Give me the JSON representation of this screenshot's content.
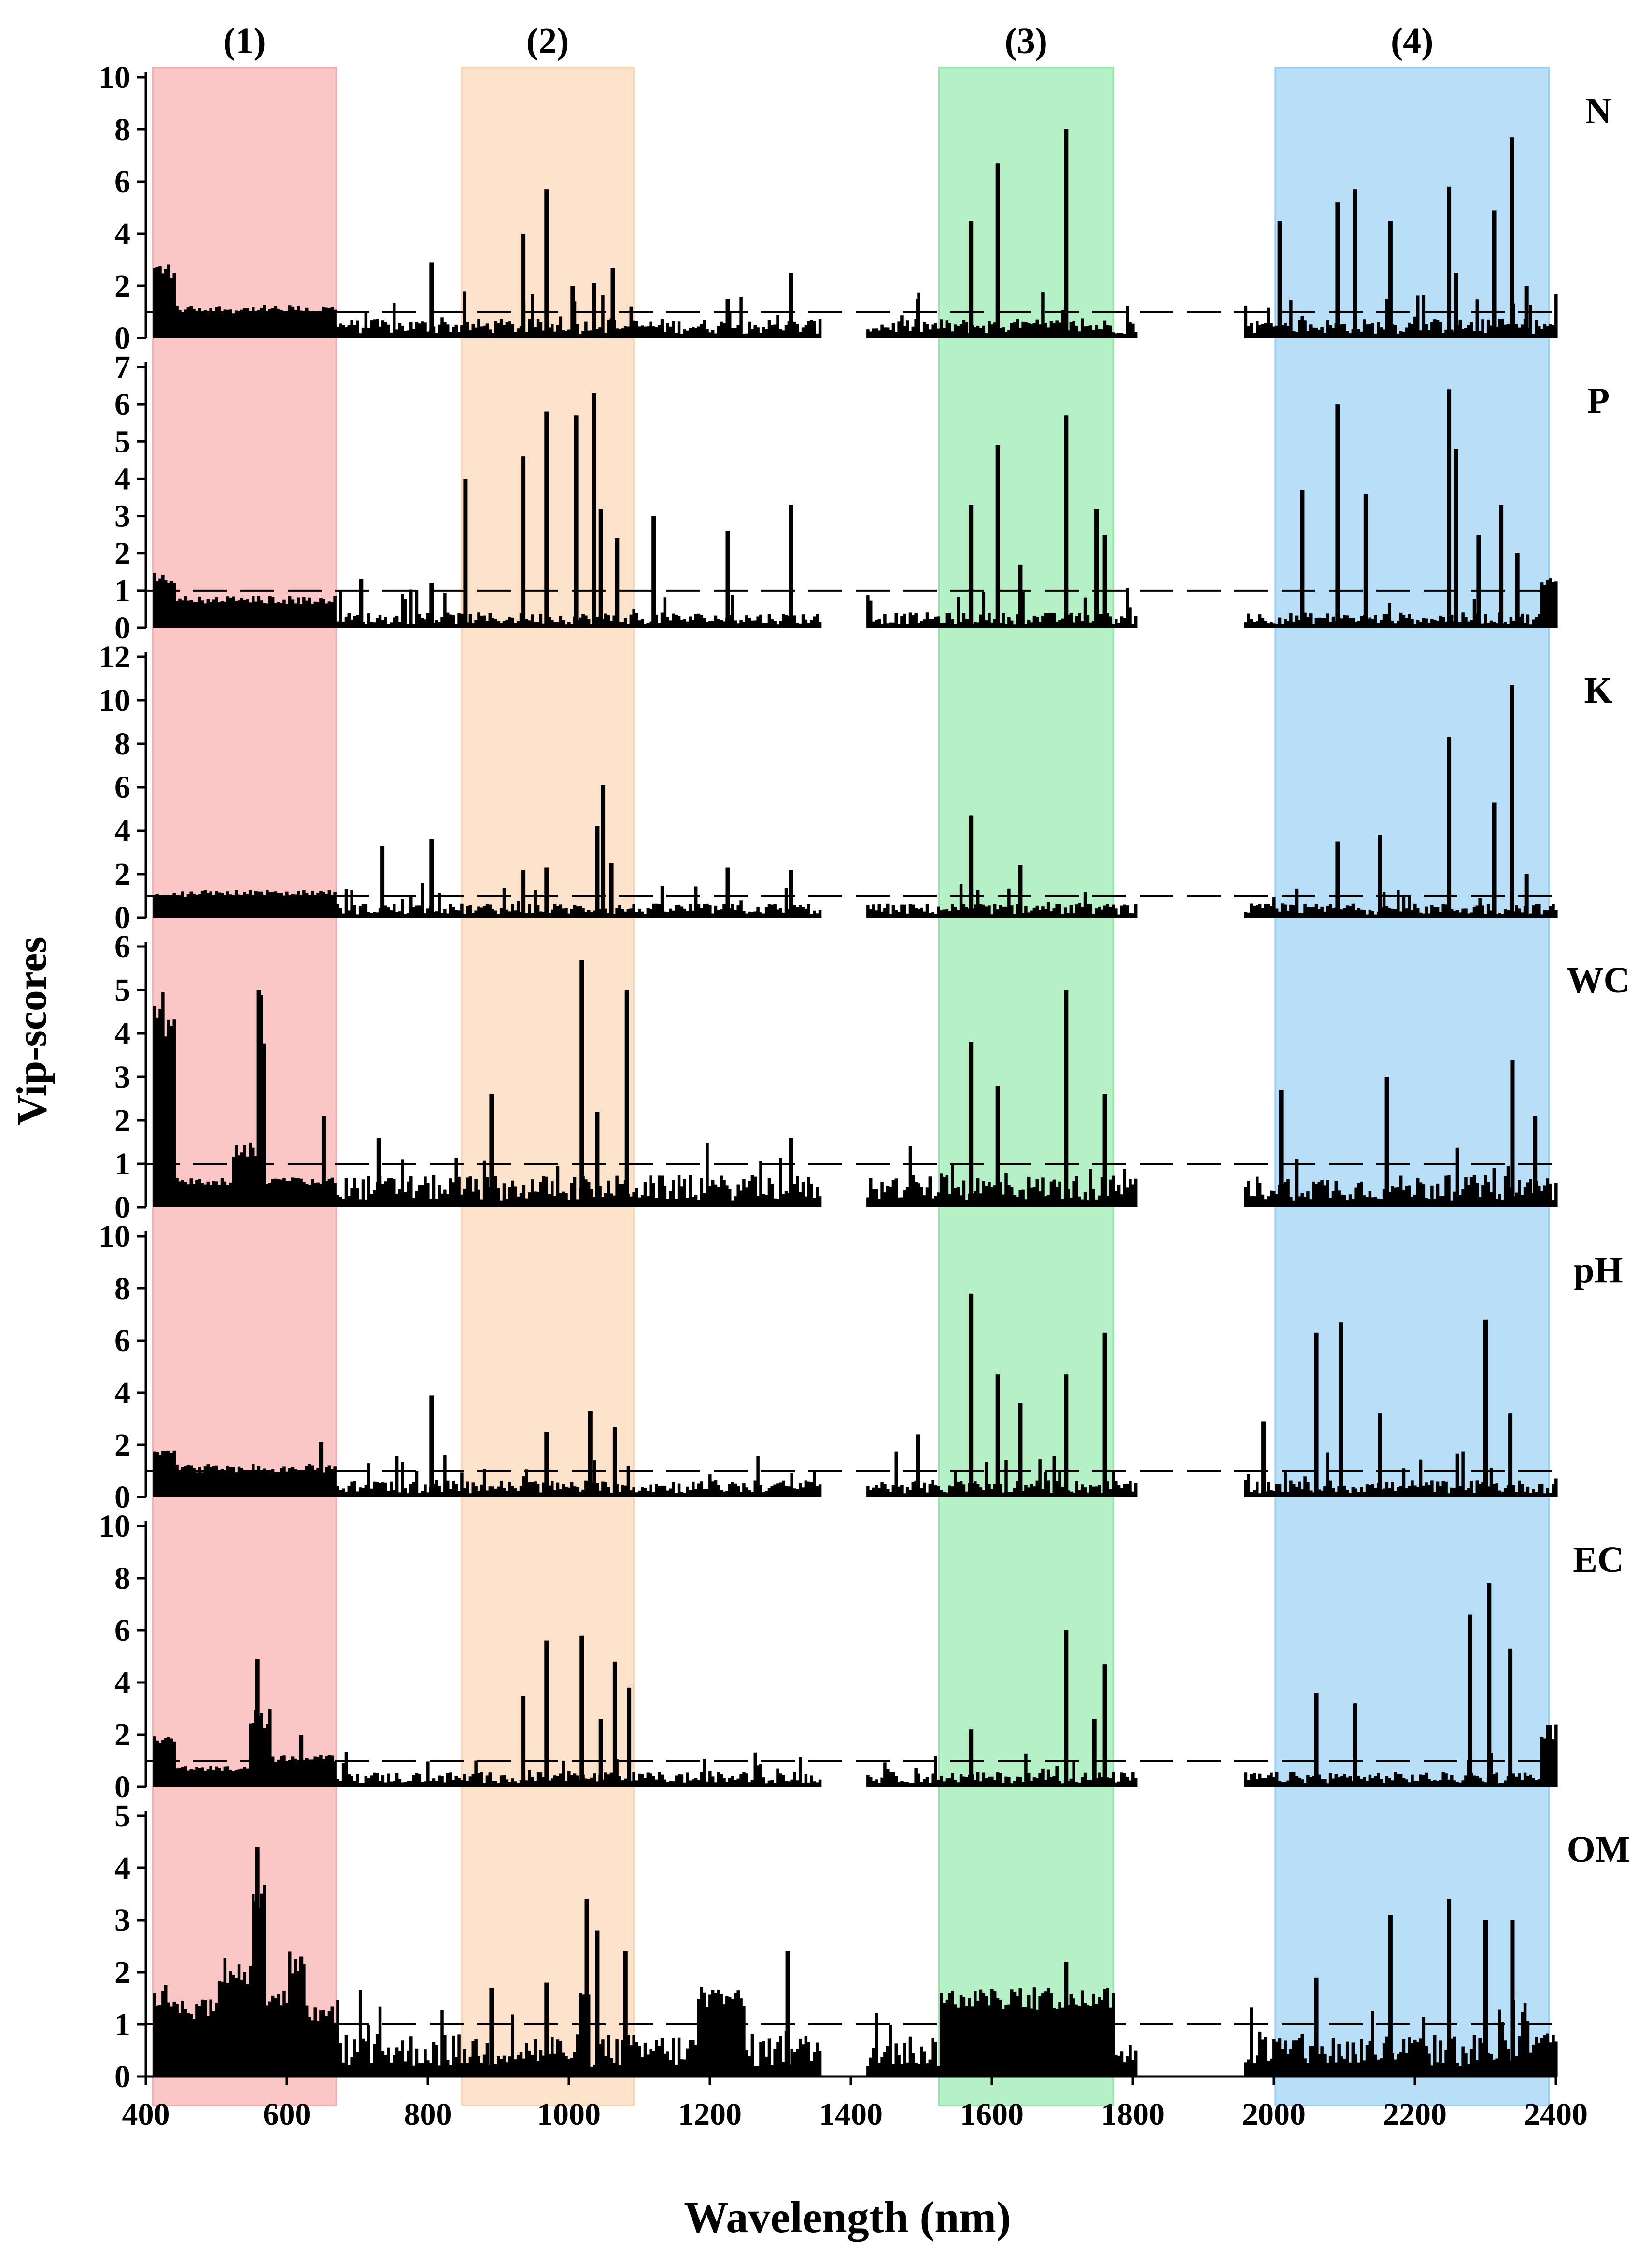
{
  "chart_data": {
    "type": "bar",
    "title": "",
    "xlabel": "Wavelength (nm)",
    "ylabel": "Vip-scores",
    "xlim": [
      400,
      2400
    ],
    "x_ticks": [
      400,
      600,
      800,
      1000,
      1200,
      1400,
      1600,
      1800,
      2000,
      2200,
      2400
    ],
    "threshold": 1,
    "bands": [
      {
        "label": "(1)",
        "range": [
          410,
          670
        ],
        "color": "#f8a8a8"
      },
      {
        "label": "(2)",
        "range": [
          848,
          1092
        ],
        "color": "#fbd3ad"
      },
      {
        "label": "(3)",
        "range": [
          1525,
          1772
        ],
        "color": "#8ee8a8"
      },
      {
        "label": "(4)",
        "range": [
          2002,
          2390
        ],
        "color": "#93ccf5"
      }
    ],
    "gaps": [
      [
        1355,
        1420
      ],
      [
        1805,
        1955
      ]
    ],
    "panels": [
      {
        "name": "N",
        "ylim": [
          0,
          10
        ],
        "y_ticks": [
          0,
          2,
          4,
          6,
          8,
          10
        ],
        "baseline": 0.45,
        "noise": 0.9,
        "regions": [
          {
            "range": [
              410,
              440
            ],
            "value": 2.6
          },
          {
            "range": [
              440,
              670
            ],
            "value": 1.1
          }
        ],
        "peaks": [
          {
            "x": 805,
            "y": 2.9
          },
          {
            "x": 935,
            "y": 4.0
          },
          {
            "x": 968,
            "y": 5.7
          },
          {
            "x": 1005,
            "y": 2.0
          },
          {
            "x": 1035,
            "y": 2.1
          },
          {
            "x": 1062,
            "y": 2.7
          },
          {
            "x": 1225,
            "y": 1.5
          },
          {
            "x": 1315,
            "y": 2.5
          },
          {
            "x": 1495,
            "y": 1.5
          },
          {
            "x": 1570,
            "y": 4.5
          },
          {
            "x": 1608,
            "y": 6.7
          },
          {
            "x": 1705,
            "y": 8.0
          },
          {
            "x": 2008,
            "y": 4.5
          },
          {
            "x": 2090,
            "y": 5.2
          },
          {
            "x": 2115,
            "y": 5.7
          },
          {
            "x": 2165,
            "y": 4.5
          },
          {
            "x": 2248,
            "y": 5.8
          },
          {
            "x": 2258,
            "y": 2.5
          },
          {
            "x": 2312,
            "y": 4.9
          },
          {
            "x": 2337,
            "y": 7.7
          },
          {
            "x": 2358,
            "y": 2.0
          }
        ]
      },
      {
        "name": "P",
        "ylim": [
          0,
          7
        ],
        "y_ticks": [
          0,
          1,
          2,
          3,
          4,
          5,
          6,
          7
        ],
        "baseline": 0.25,
        "noise": 0.55,
        "regions": [
          {
            "range": [
              410,
              440
            ],
            "value": 1.3
          },
          {
            "range": [
              440,
              670
            ],
            "value": 0.75
          },
          {
            "range": [
              2375,
              2400
            ],
            "value": 1.2
          }
        ],
        "peaks": [
          {
            "x": 705,
            "y": 1.3
          },
          {
            "x": 805,
            "y": 1.2
          },
          {
            "x": 853,
            "y": 4.0
          },
          {
            "x": 935,
            "y": 4.6
          },
          {
            "x": 968,
            "y": 5.8
          },
          {
            "x": 1010,
            "y": 5.7
          },
          {
            "x": 1035,
            "y": 6.3
          },
          {
            "x": 1045,
            "y": 3.2
          },
          {
            "x": 1068,
            "y": 2.4
          },
          {
            "x": 1120,
            "y": 3.0
          },
          {
            "x": 1225,
            "y": 2.6
          },
          {
            "x": 1315,
            "y": 3.3
          },
          {
            "x": 1570,
            "y": 3.3
          },
          {
            "x": 1608,
            "y": 4.9
          },
          {
            "x": 1640,
            "y": 1.7
          },
          {
            "x": 1705,
            "y": 5.7
          },
          {
            "x": 1748,
            "y": 3.2
          },
          {
            "x": 1760,
            "y": 2.5
          },
          {
            "x": 2040,
            "y": 3.7
          },
          {
            "x": 2090,
            "y": 6.0
          },
          {
            "x": 2130,
            "y": 3.6
          },
          {
            "x": 2248,
            "y": 6.4
          },
          {
            "x": 2258,
            "y": 4.8
          },
          {
            "x": 2290,
            "y": 2.5
          },
          {
            "x": 2322,
            "y": 3.3
          },
          {
            "x": 2345,
            "y": 2.0
          }
        ]
      },
      {
        "name": "K",
        "ylim": [
          0,
          12
        ],
        "y_ticks": [
          0,
          2,
          4,
          6,
          8,
          10,
          12
        ],
        "baseline": 0.4,
        "noise": 0.8,
        "regions": [
          {
            "range": [
              410,
              670
            ],
            "value": 1.1
          }
        ],
        "peaks": [
          {
            "x": 735,
            "y": 3.3
          },
          {
            "x": 805,
            "y": 3.6
          },
          {
            "x": 935,
            "y": 2.2
          },
          {
            "x": 968,
            "y": 2.3
          },
          {
            "x": 1040,
            "y": 4.2
          },
          {
            "x": 1048,
            "y": 6.1
          },
          {
            "x": 1060,
            "y": 2.5
          },
          {
            "x": 1225,
            "y": 2.3
          },
          {
            "x": 1315,
            "y": 2.2
          },
          {
            "x": 1570,
            "y": 4.7
          },
          {
            "x": 1640,
            "y": 2.4
          },
          {
            "x": 2090,
            "y": 3.5
          },
          {
            "x": 2150,
            "y": 3.8
          },
          {
            "x": 2248,
            "y": 8.3
          },
          {
            "x": 2312,
            "y": 5.3
          },
          {
            "x": 2337,
            "y": 10.7
          },
          {
            "x": 2358,
            "y": 2.0
          }
        ]
      },
      {
        "name": "WC",
        "ylim": [
          0,
          6
        ],
        "y_ticks": [
          0,
          1,
          2,
          3,
          4,
          5,
          6
        ],
        "baseline": 0.45,
        "noise": 0.7,
        "regions": [
          {
            "range": [
              410,
              440
            ],
            "value": 4.6
          },
          {
            "range": [
              440,
              520
            ],
            "value": 0.6
          },
          {
            "range": [
              520,
              555
            ],
            "value": 1.3
          },
          {
            "range": [
              555,
              570
            ],
            "value": 4.3
          },
          {
            "range": [
              570,
              670
            ],
            "value": 0.6
          }
        ],
        "peaks": [
          {
            "x": 560,
            "y": 5.0
          },
          {
            "x": 652,
            "y": 2.1
          },
          {
            "x": 730,
            "y": 1.6
          },
          {
            "x": 890,
            "y": 2.6
          },
          {
            "x": 1018,
            "y": 5.7
          },
          {
            "x": 1082,
            "y": 5.0
          },
          {
            "x": 1040,
            "y": 2.2
          },
          {
            "x": 1315,
            "y": 1.6
          },
          {
            "x": 1570,
            "y": 3.8
          },
          {
            "x": 1608,
            "y": 2.8
          },
          {
            "x": 1705,
            "y": 5.0
          },
          {
            "x": 1760,
            "y": 2.6
          },
          {
            "x": 2010,
            "y": 2.7
          },
          {
            "x": 2160,
            "y": 3.0
          },
          {
            "x": 2338,
            "y": 3.4
          },
          {
            "x": 2370,
            "y": 2.1
          }
        ]
      },
      {
        "name": "pH",
        "ylim": [
          0,
          10
        ],
        "y_ticks": [
          0,
          2,
          4,
          6,
          8,
          10
        ],
        "baseline": 0.4,
        "noise": 0.9,
        "regions": [
          {
            "range": [
              410,
              440
            ],
            "value": 1.7
          },
          {
            "range": [
              440,
              670
            ],
            "value": 1.1
          }
        ],
        "peaks": [
          {
            "x": 648,
            "y": 2.1
          },
          {
            "x": 805,
            "y": 3.9
          },
          {
            "x": 968,
            "y": 2.5
          },
          {
            "x": 1030,
            "y": 3.3
          },
          {
            "x": 1065,
            "y": 2.7
          },
          {
            "x": 1495,
            "y": 2.4
          },
          {
            "x": 1570,
            "y": 7.8
          },
          {
            "x": 1608,
            "y": 4.7
          },
          {
            "x": 1640,
            "y": 3.6
          },
          {
            "x": 1705,
            "y": 4.7
          },
          {
            "x": 1760,
            "y": 6.3
          },
          {
            "x": 1985,
            "y": 2.9
          },
          {
            "x": 2060,
            "y": 6.3
          },
          {
            "x": 2095,
            "y": 6.7
          },
          {
            "x": 2150,
            "y": 3.2
          },
          {
            "x": 2300,
            "y": 6.8
          },
          {
            "x": 2335,
            "y": 3.2
          }
        ]
      },
      {
        "name": "EC",
        "ylim": [
          0,
          10
        ],
        "y_ticks": [
          0,
          2,
          4,
          6,
          8,
          10
        ],
        "baseline": 0.35,
        "noise": 0.7,
        "regions": [
          {
            "range": [
              410,
              440
            ],
            "value": 1.9
          },
          {
            "range": [
              440,
              545
            ],
            "value": 0.7
          },
          {
            "range": [
              545,
              575
            ],
            "value": 2.6
          },
          {
            "range": [
              575,
              670
            ],
            "value": 1.1
          },
          {
            "range": [
              2375,
              2400
            ],
            "value": 2.1
          }
        ],
        "peaks": [
          {
            "x": 558,
            "y": 4.9
          },
          {
            "x": 620,
            "y": 2.0
          },
          {
            "x": 935,
            "y": 3.5
          },
          {
            "x": 968,
            "y": 5.6
          },
          {
            "x": 1018,
            "y": 5.8
          },
          {
            "x": 1045,
            "y": 2.6
          },
          {
            "x": 1065,
            "y": 4.8
          },
          {
            "x": 1085,
            "y": 3.8
          },
          {
            "x": 1570,
            "y": 2.2
          },
          {
            "x": 1705,
            "y": 6.0
          },
          {
            "x": 1745,
            "y": 2.6
          },
          {
            "x": 1760,
            "y": 4.7
          },
          {
            "x": 2060,
            "y": 3.6
          },
          {
            "x": 2115,
            "y": 3.2
          },
          {
            "x": 2278,
            "y": 6.6
          },
          {
            "x": 2305,
            "y": 7.8
          },
          {
            "x": 2335,
            "y": 5.3
          }
        ]
      },
      {
        "name": "OM",
        "ylim": [
          0,
          5
        ],
        "y_ticks": [
          0,
          1,
          2,
          3,
          4,
          5
        ],
        "baseline": 0.5,
        "noise": 0.8,
        "regions": [
          {
            "range": [
              410,
              445
            ],
            "value": 1.55
          },
          {
            "range": [
              445,
              500
            ],
            "value": 1.3
          },
          {
            "range": [
              500,
              550
            ],
            "value": 2.0
          },
          {
            "range": [
              550,
              570
            ],
            "value": 3.5
          },
          {
            "range": [
              570,
              600
            ],
            "value": 1.6
          },
          {
            "range": [
              600,
              625
            ],
            "value": 2.1
          },
          {
            "range": [
              625,
              670
            ],
            "value": 1.2
          },
          {
            "range": [
              1180,
              1250
            ],
            "value": 1.5
          },
          {
            "range": [
              1525,
              1772
            ],
            "value": 1.5
          },
          {
            "range": [
              2370,
              2400
            ],
            "value": 0.75
          }
        ],
        "peaks": [
          {
            "x": 558,
            "y": 4.4
          },
          {
            "x": 620,
            "y": 2.3
          },
          {
            "x": 890,
            "y": 1.7
          },
          {
            "x": 968,
            "y": 1.8
          },
          {
            "x": 1025,
            "y": 3.4
          },
          {
            "x": 1040,
            "y": 2.8
          },
          {
            "x": 1080,
            "y": 2.4
          },
          {
            "x": 1310,
            "y": 2.4
          },
          {
            "x": 1705,
            "y": 2.2
          },
          {
            "x": 2060,
            "y": 1.9
          },
          {
            "x": 2165,
            "y": 3.1
          },
          {
            "x": 2248,
            "y": 3.4
          },
          {
            "x": 2300,
            "y": 3.0
          },
          {
            "x": 2338,
            "y": 3.0
          }
        ]
      }
    ]
  }
}
